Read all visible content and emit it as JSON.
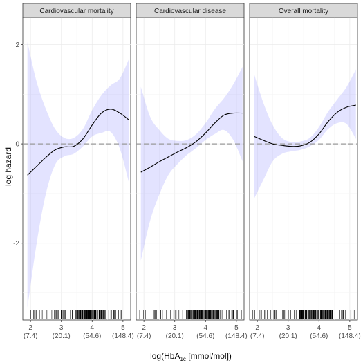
{
  "chart_data": {
    "type": "line",
    "ylabel": "log hazard",
    "xlabel_main": "log(HbA",
    "xlabel_sub": "1c",
    "xlabel_tail": " [mmol/mol])",
    "xlim": [
      1.75,
      5.25
    ],
    "ylim": [
      -3.55,
      2.55
    ],
    "x_ticks": [
      {
        "value": 2,
        "label": "2",
        "sub": "(7.4)"
      },
      {
        "value": 3,
        "label": "3",
        "sub": "(20.1)"
      },
      {
        "value": 4,
        "label": "4",
        "sub": "(54.6)"
      },
      {
        "value": 5,
        "label": "5",
        "sub": "(148.4)"
      }
    ],
    "y_ticks": [
      {
        "value": 2,
        "label": "2"
      },
      {
        "value": 0,
        "label": "0"
      },
      {
        "value": -2,
        "label": "-2"
      }
    ],
    "reference_line_y": 0,
    "ribbon_color": "#0000ff",
    "line_color": "#000000",
    "panels": [
      {
        "title": "Cardiovascular mortality",
        "x": [
          1.9,
          2.2,
          2.5,
          2.8,
          3.1,
          3.4,
          3.7,
          4.0,
          4.3,
          4.6,
          4.9,
          5.2
        ],
        "estimate": [
          -0.63,
          -0.45,
          -0.27,
          -0.12,
          -0.06,
          -0.05,
          0.1,
          0.38,
          0.62,
          0.7,
          0.62,
          0.48
        ],
        "lower": [
          -3.3,
          -2.0,
          -1.0,
          -0.42,
          -0.25,
          -0.2,
          -0.05,
          0.15,
          0.22,
          0.24,
          -0.1,
          -0.8
        ],
        "upper": [
          2.05,
          1.25,
          0.7,
          0.3,
          0.12,
          0.12,
          0.3,
          0.68,
          0.98,
          1.18,
          1.32,
          1.72
        ]
      },
      {
        "title": "Cardiovascular disease",
        "x": [
          1.9,
          2.2,
          2.5,
          2.8,
          3.1,
          3.4,
          3.7,
          4.0,
          4.3,
          4.6,
          4.9,
          5.2
        ],
        "estimate": [
          -0.57,
          -0.47,
          -0.36,
          -0.26,
          -0.16,
          -0.07,
          0.05,
          0.22,
          0.42,
          0.58,
          0.62,
          0.62
        ],
        "lower": [
          -2.35,
          -1.55,
          -1.02,
          -0.62,
          -0.4,
          -0.22,
          -0.08,
          0.08,
          0.2,
          0.28,
          0.08,
          -0.35
        ],
        "upper": [
          1.15,
          0.55,
          0.28,
          0.1,
          0.06,
          0.08,
          0.2,
          0.42,
          0.7,
          0.92,
          1.2,
          1.55
        ]
      },
      {
        "title": "Overall mortality",
        "x": [
          1.9,
          2.2,
          2.5,
          2.8,
          3.1,
          3.4,
          3.7,
          4.0,
          4.3,
          4.6,
          4.9,
          5.2
        ],
        "estimate": [
          0.15,
          0.07,
          0.0,
          -0.03,
          -0.05,
          -0.04,
          0.03,
          0.2,
          0.45,
          0.64,
          0.74,
          0.78
        ],
        "lower": [
          -1.1,
          -0.72,
          -0.35,
          -0.2,
          -0.15,
          -0.12,
          -0.05,
          0.08,
          0.3,
          0.42,
          0.4,
          0.1
        ],
        "upper": [
          1.4,
          0.82,
          0.38,
          0.12,
          0.04,
          0.05,
          0.12,
          0.34,
          0.65,
          0.9,
          1.15,
          1.5
        ]
      }
    ]
  }
}
